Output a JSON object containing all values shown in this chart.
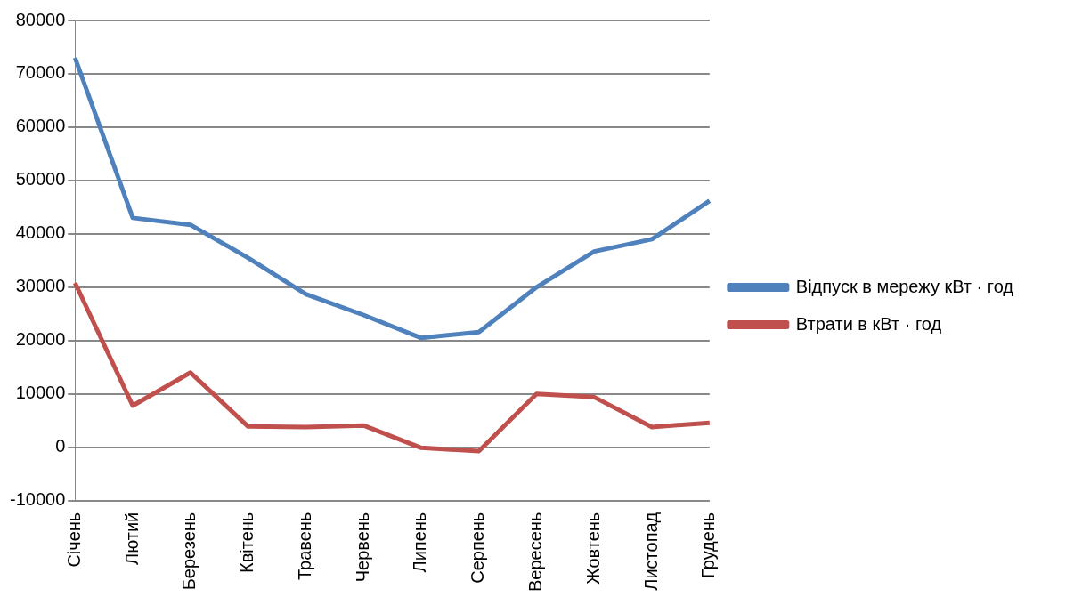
{
  "chart_data": {
    "type": "line",
    "categories": [
      "Січень",
      "Лютий",
      "Березень",
      "Квітень",
      "Травень",
      "Червень",
      "Липень",
      "Серпень",
      "Вересень",
      "Жовтень",
      "Листопад",
      "Грудень"
    ],
    "series": [
      {
        "name": "Відпуск в мережу кВт · год",
        "color": "#4f81bd",
        "values": [
          73000,
          43000,
          41700,
          35500,
          28700,
          24800,
          20500,
          21600,
          30000,
          36700,
          39000,
          46200
        ]
      },
      {
        "name": "Втрати в кВт · год",
        "color": "#c0504d",
        "values": [
          30800,
          7800,
          14000,
          3900,
          3800,
          4100,
          -100,
          -700,
          10000,
          9400,
          3800,
          4600
        ]
      }
    ],
    "ylim": [
      -10000,
      80000
    ],
    "yticks": [
      -10000,
      0,
      10000,
      20000,
      30000,
      40000,
      50000,
      60000,
      70000,
      80000
    ],
    "grid": "y",
    "legend": "right",
    "marker": "none",
    "line_style": "solid"
  }
}
